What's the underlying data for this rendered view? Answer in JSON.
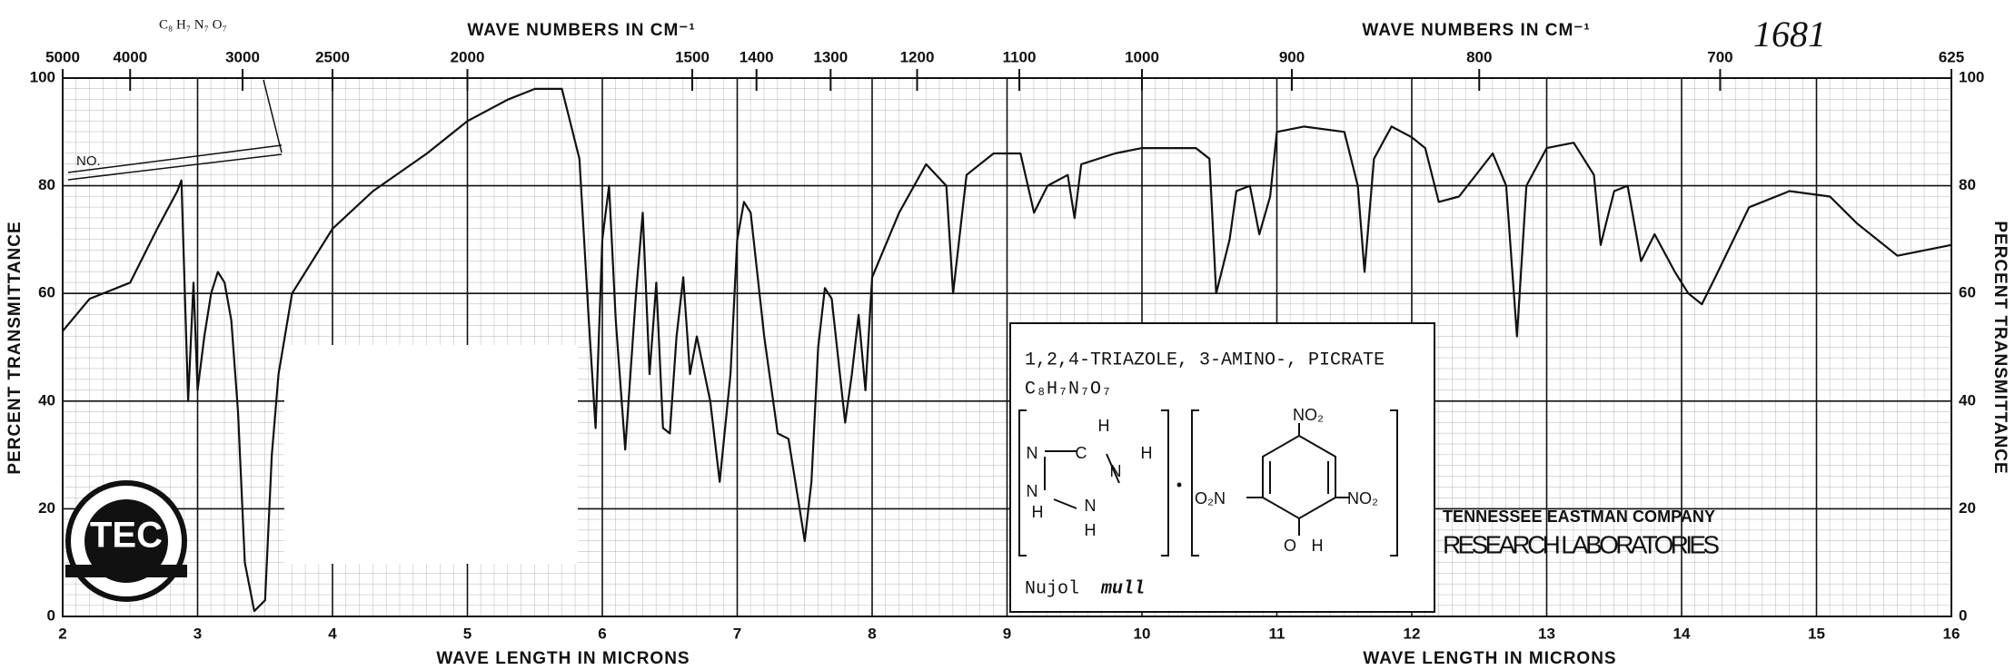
{
  "chart_data": {
    "type": "line",
    "x": [
      2.0,
      2.2,
      2.5,
      2.7,
      2.85,
      2.88,
      2.93,
      2.97,
      3.0,
      3.05,
      3.1,
      3.15,
      3.2,
      3.25,
      3.3,
      3.35,
      3.42,
      3.5,
      3.55,
      3.6,
      3.7,
      4.0,
      4.3,
      4.7,
      5.0,
      5.3,
      5.5,
      5.7,
      5.83,
      5.9,
      5.95,
      6.0,
      6.05,
      6.1,
      6.17,
      6.25,
      6.3,
      6.35,
      6.38,
      6.4,
      6.45,
      6.5,
      6.55,
      6.6,
      6.65,
      6.7,
      6.8,
      6.87,
      6.95,
      7.0,
      7.05,
      7.1,
      7.2,
      7.3,
      7.38,
      7.45,
      7.5,
      7.55,
      7.6,
      7.65,
      7.7,
      7.8,
      7.85,
      7.9,
      7.95,
      8.0,
      8.2,
      8.4,
      8.55,
      8.6,
      8.7,
      8.9,
      9.1,
      9.2,
      9.3,
      9.45,
      9.5,
      9.55,
      9.8,
      10.0,
      10.4,
      10.5,
      10.55,
      10.65,
      10.7,
      10.8,
      10.87,
      10.95,
      11.0,
      11.2,
      11.5,
      11.6,
      11.65,
      11.72,
      11.85,
      12.0,
      12.1,
      12.2,
      12.35,
      12.6,
      12.7,
      12.78,
      12.85,
      13.0,
      13.2,
      13.35,
      13.4,
      13.5,
      13.6,
      13.7,
      13.8,
      13.95,
      14.05,
      14.15,
      14.25,
      14.5,
      14.8,
      15.1,
      15.3,
      15.6,
      16.0
    ],
    "values": [
      53,
      59,
      62,
      72,
      79,
      81,
      40,
      62,
      42,
      52,
      60,
      64,
      62,
      55,
      38,
      10,
      1,
      3,
      30,
      45,
      60,
      72,
      79,
      86,
      92,
      96,
      98,
      98,
      85,
      55,
      35,
      70,
      80,
      55,
      31,
      60,
      75,
      45,
      55,
      62,
      35,
      34,
      52,
      63,
      45,
      52,
      40,
      25,
      45,
      70,
      77,
      75,
      52,
      34,
      33,
      22,
      14,
      25,
      50,
      61,
      59,
      36,
      45,
      56,
      42,
      63,
      75,
      84,
      80,
      60,
      82,
      86,
      86,
      75,
      80,
      82,
      74,
      84,
      86,
      87,
      87,
      85,
      60,
      70,
      79,
      80,
      71,
      78,
      90,
      91,
      90,
      80,
      64,
      85,
      91,
      89,
      87,
      77,
      78,
      86,
      80,
      52,
      80,
      87,
      88,
      82,
      69,
      79,
      80,
      66,
      71,
      64,
      60,
      58,
      63,
      76,
      79,
      78,
      73,
      67,
      69
    ],
    "color": "#111111",
    "xlim": [
      2,
      16
    ],
    "ylim": [
      0,
      100
    ],
    "xticks": [
      2,
      3,
      4,
      5,
      6,
      7,
      8,
      9,
      10,
      11,
      12,
      13,
      14,
      15,
      16
    ],
    "yticks": [
      0,
      20,
      40,
      60,
      80,
      100
    ],
    "x2ticks": [
      5000,
      4000,
      3000,
      2500,
      2000,
      1500,
      1400,
      1300,
      1200,
      1100,
      1000,
      900,
      800,
      700,
      625
    ],
    "xlabel": "WAVE LENGTH IN MICRONS",
    "x2label": "WAVE NUMBERS IN CM⁻¹",
    "ylabel": "PERCENT TRANSMITTANCE",
    "grid": true,
    "annotations": {
      "number": "1681",
      "formula_top": "C₈ H₇ N₇ O₇",
      "no": "NO."
    },
    "inset": {
      "name": "1,2,4-TRIAZOLE, 3-AMINO-, PICRATE",
      "formula": "C₈H₇N₇O₇",
      "medium": "Nujol",
      "medium_style": "mull",
      "structure_labels": [
        "N",
        "C",
        "N",
        "N",
        "N",
        "H",
        "H",
        "H",
        "H",
        "NO₂",
        "O₂N",
        "NO₂",
        "O",
        "H",
        "•"
      ]
    },
    "logo": {
      "mark": "TEC",
      "company": "TENNESSEE EASTMAN COMPANY",
      "lab": "RESEARCH LABORATORIES"
    }
  }
}
